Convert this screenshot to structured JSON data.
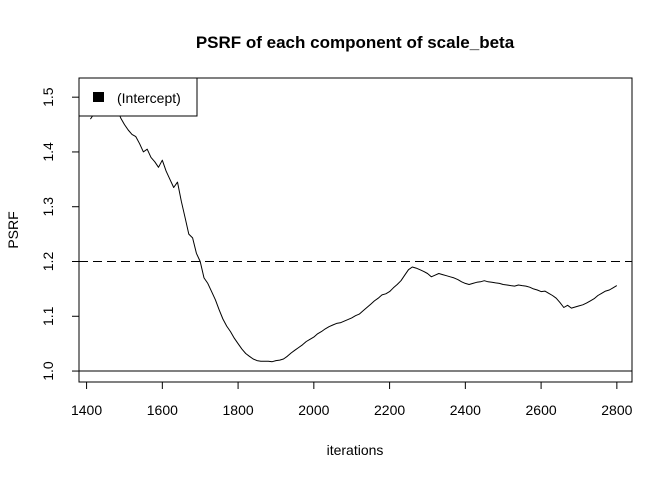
{
  "chart_data": {
    "type": "line",
    "title": "PSRF of each component of scale_beta",
    "xlabel": "iterations",
    "ylabel": "PSRF",
    "xlim": [
      1380,
      2840
    ],
    "ylim": [
      0.98,
      1.535
    ],
    "x_ticks": [
      1400,
      1600,
      1800,
      2000,
      2200,
      2400,
      2600,
      2800
    ],
    "y_ticks": [
      1.0,
      1.1,
      1.2,
      1.3,
      1.4,
      1.5
    ],
    "x_tick_labels": [
      "1400",
      "1600",
      "1800",
      "2000",
      "2200",
      "2400",
      "2600",
      "2800"
    ],
    "y_tick_labels": [
      "1.0",
      "1.1",
      "1.2",
      "1.3",
      "1.4",
      "1.5"
    ],
    "reference_lines": [
      {
        "y": 1.2,
        "style": "dashed"
      },
      {
        "y": 1.0,
        "style": "solid"
      }
    ],
    "grid": false,
    "legend": {
      "position": "top-left",
      "entries": [
        "(Intercept)"
      ]
    },
    "series": [
      {
        "name": "(Intercept)",
        "color": "#000000",
        "x": [
          1410,
          1420,
          1430,
          1440,
          1450,
          1460,
          1470,
          1480,
          1490,
          1500,
          1510,
          1520,
          1530,
          1540,
          1550,
          1560,
          1570,
          1580,
          1590,
          1600,
          1610,
          1620,
          1630,
          1640,
          1650,
          1660,
          1670,
          1680,
          1690,
          1700,
          1710,
          1720,
          1730,
          1740,
          1750,
          1760,
          1770,
          1780,
          1790,
          1800,
          1810,
          1820,
          1830,
          1840,
          1850,
          1860,
          1870,
          1880,
          1890,
          1900,
          1910,
          1920,
          1930,
          1940,
          1950,
          1960,
          1970,
          1980,
          1990,
          2000,
          2010,
          2020,
          2030,
          2040,
          2050,
          2060,
          2070,
          2080,
          2090,
          2100,
          2110,
          2120,
          2130,
          2140,
          2150,
          2160,
          2170,
          2180,
          2190,
          2200,
          2210,
          2220,
          2230,
          2240,
          2250,
          2260,
          2270,
          2280,
          2290,
          2300,
          2310,
          2320,
          2330,
          2340,
          2350,
          2360,
          2370,
          2380,
          2390,
          2400,
          2410,
          2420,
          2430,
          2440,
          2450,
          2460,
          2470,
          2480,
          2490,
          2500,
          2510,
          2520,
          2530,
          2540,
          2550,
          2560,
          2570,
          2580,
          2590,
          2600,
          2610,
          2620,
          2630,
          2640,
          2650,
          2660,
          2670,
          2680,
          2690,
          2700,
          2710,
          2720,
          2730,
          2740,
          2750,
          2760,
          2770,
          2780,
          2790,
          2800
        ],
        "y": [
          1.46,
          1.47,
          1.478,
          1.485,
          1.488,
          1.49,
          1.489,
          1.48,
          1.462,
          1.45,
          1.44,
          1.432,
          1.428,
          1.415,
          1.4,
          1.405,
          1.39,
          1.382,
          1.372,
          1.385,
          1.365,
          1.35,
          1.335,
          1.345,
          1.31,
          1.28,
          1.25,
          1.243,
          1.215,
          1.2,
          1.17,
          1.16,
          1.145,
          1.13,
          1.112,
          1.095,
          1.082,
          1.072,
          1.06,
          1.05,
          1.04,
          1.032,
          1.027,
          1.022,
          1.019,
          1.018,
          1.018,
          1.018,
          1.017,
          1.019,
          1.02,
          1.022,
          1.027,
          1.033,
          1.038,
          1.043,
          1.048,
          1.054,
          1.058,
          1.062,
          1.068,
          1.072,
          1.077,
          1.081,
          1.084,
          1.087,
          1.088,
          1.091,
          1.094,
          1.097,
          1.101,
          1.104,
          1.11,
          1.116,
          1.122,
          1.128,
          1.133,
          1.139,
          1.141,
          1.145,
          1.152,
          1.158,
          1.165,
          1.175,
          1.185,
          1.19,
          1.188,
          1.185,
          1.182,
          1.178,
          1.172,
          1.175,
          1.178,
          1.176,
          1.174,
          1.172,
          1.17,
          1.167,
          1.163,
          1.16,
          1.158,
          1.16,
          1.162,
          1.163,
          1.165,
          1.163,
          1.162,
          1.161,
          1.16,
          1.158,
          1.157,
          1.156,
          1.155,
          1.157,
          1.156,
          1.155,
          1.153,
          1.15,
          1.148,
          1.145,
          1.146,
          1.142,
          1.138,
          1.133,
          1.125,
          1.116,
          1.12,
          1.115,
          1.117,
          1.119,
          1.121,
          1.124,
          1.128,
          1.132,
          1.138,
          1.142,
          1.146,
          1.148,
          1.152,
          1.156
        ]
      }
    ]
  }
}
